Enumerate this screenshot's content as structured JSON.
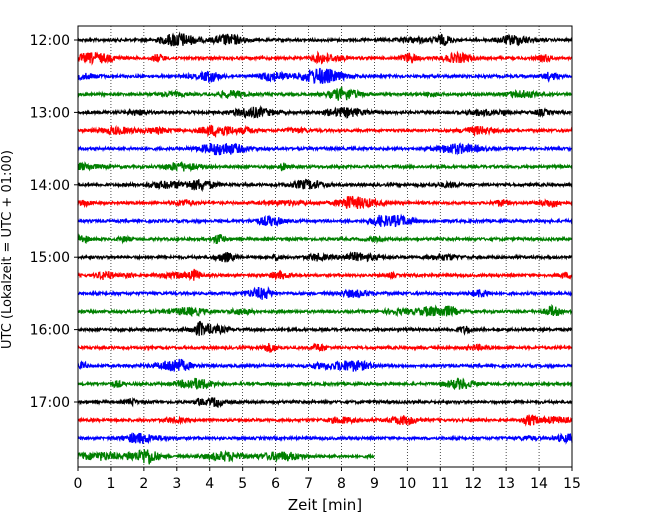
{
  "chart_data": {
    "type": "line",
    "title": "",
    "xlabel": "Zeit  [min]",
    "ylabel": "UTC (Lokalzeit = UTC + 01:00)",
    "xlim": [
      0,
      15
    ],
    "xticks": [
      0,
      1,
      2,
      3,
      4,
      5,
      6,
      7,
      8,
      9,
      10,
      11,
      12,
      13,
      14,
      15
    ],
    "xtick_labels": [
      "0",
      "1",
      "2",
      "3",
      "4",
      "5",
      "6",
      "7",
      "8",
      "9",
      "10",
      "11",
      "12",
      "13",
      "14",
      "15"
    ],
    "yticks": [
      "12:00",
      "13:00",
      "14:00",
      "15:00",
      "16:00",
      "17:00"
    ],
    "grid": "vertical dotted at each minute",
    "trace_color_cycle": [
      "#000000",
      "#ff0000",
      "#0000ff",
      "#008000"
    ],
    "traces": [
      {
        "start": "12:00",
        "end_min": 15,
        "color": "#000000"
      },
      {
        "start": "12:15",
        "end_min": 15,
        "color": "#ff0000"
      },
      {
        "start": "12:30",
        "end_min": 15,
        "color": "#0000ff"
      },
      {
        "start": "12:45",
        "end_min": 15,
        "color": "#008000"
      },
      {
        "start": "13:00",
        "end_min": 15,
        "color": "#000000"
      },
      {
        "start": "13:15",
        "end_min": 15,
        "color": "#ff0000"
      },
      {
        "start": "13:30",
        "end_min": 15,
        "color": "#0000ff"
      },
      {
        "start": "13:45",
        "end_min": 15,
        "color": "#008000"
      },
      {
        "start": "14:00",
        "end_min": 15,
        "color": "#000000"
      },
      {
        "start": "14:15",
        "end_min": 15,
        "color": "#ff0000"
      },
      {
        "start": "14:30",
        "end_min": 15,
        "color": "#0000ff"
      },
      {
        "start": "14:45",
        "end_min": 15,
        "color": "#008000"
      },
      {
        "start": "15:00",
        "end_min": 15,
        "color": "#000000"
      },
      {
        "start": "15:15",
        "end_min": 15,
        "color": "#ff0000"
      },
      {
        "start": "15:30",
        "end_min": 15,
        "color": "#0000ff"
      },
      {
        "start": "15:45",
        "end_min": 15,
        "color": "#008000"
      },
      {
        "start": "16:00",
        "end_min": 15,
        "color": "#000000"
      },
      {
        "start": "16:15",
        "end_min": 15,
        "color": "#ff0000"
      },
      {
        "start": "16:30",
        "end_min": 15,
        "color": "#0000ff"
      },
      {
        "start": "16:45",
        "end_min": 15,
        "color": "#008000"
      },
      {
        "start": "17:00",
        "end_min": 15,
        "color": "#000000"
      },
      {
        "start": "17:15",
        "end_min": 15,
        "color": "#ff0000"
      },
      {
        "start": "17:30",
        "end_min": 15,
        "color": "#0000ff"
      },
      {
        "start": "17:45",
        "end_min": 9,
        "color": "#008000"
      }
    ]
  }
}
